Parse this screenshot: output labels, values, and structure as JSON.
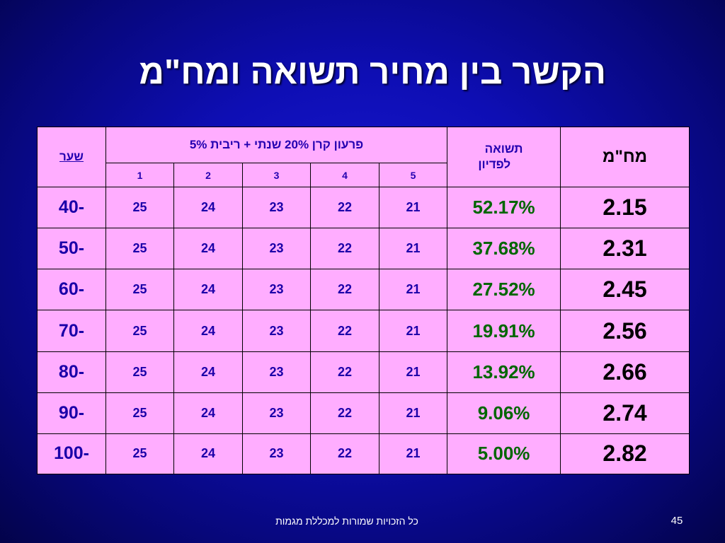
{
  "slide": {
    "title": "הקשר בין מחיר תשואה ומח\"מ",
    "footer": "כל הזכויות שמורות למכללת מגמות",
    "page_number": "45"
  },
  "table": {
    "headers": {
      "rate": "שער",
      "group": "פרעון קרן 20% שנתי + ריבית 5%",
      "yield_line1": "תשואה",
      "yield_line2": "לפדיון",
      "duration": "מח\"מ"
    },
    "year_columns": [
      "1",
      "2",
      "3",
      "4",
      "5"
    ],
    "rows": [
      {
        "rate": "40-",
        "years": [
          "25",
          "24",
          "23",
          "22",
          "21"
        ],
        "yield": "52.17%",
        "duration": "2.15"
      },
      {
        "rate": "50-",
        "years": [
          "25",
          "24",
          "23",
          "22",
          "21"
        ],
        "yield": "37.68%",
        "duration": "2.31"
      },
      {
        "rate": "60-",
        "years": [
          "25",
          "24",
          "23",
          "22",
          "21"
        ],
        "yield": "27.52%",
        "duration": "2.45"
      },
      {
        "rate": "70-",
        "years": [
          "25",
          "24",
          "23",
          "22",
          "21"
        ],
        "yield": "19.91%",
        "duration": "2.56"
      },
      {
        "rate": "80-",
        "years": [
          "25",
          "24",
          "23",
          "22",
          "21"
        ],
        "yield": "13.92%",
        "duration": "2.66"
      },
      {
        "rate": "90-",
        "years": [
          "25",
          "24",
          "23",
          "22",
          "21"
        ],
        "yield": "9.06%",
        "duration": "2.74"
      },
      {
        "rate": "100-",
        "years": [
          "25",
          "24",
          "23",
          "22",
          "21"
        ],
        "yield": "5.00%",
        "duration": "2.82"
      }
    ]
  }
}
